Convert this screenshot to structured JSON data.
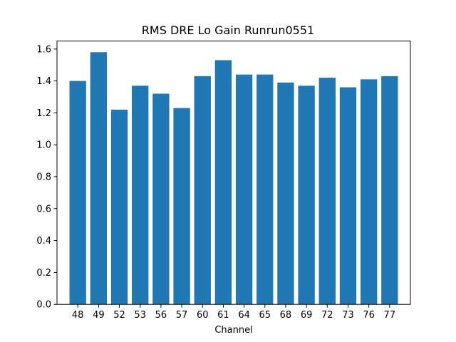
{
  "chart_data": {
    "type": "bar",
    "title": "RMS DRE Lo Gain Runrun0551",
    "xlabel": "Channel",
    "ylabel": "",
    "categories": [
      "48",
      "49",
      "52",
      "53",
      "56",
      "57",
      "60",
      "61",
      "64",
      "65",
      "68",
      "69",
      "72",
      "73",
      "76",
      "77"
    ],
    "values": [
      1.4,
      1.58,
      1.22,
      1.37,
      1.32,
      1.23,
      1.43,
      1.53,
      1.44,
      1.44,
      1.39,
      1.37,
      1.42,
      1.36,
      1.41,
      1.43
    ],
    "ylim": [
      0,
      1.65
    ],
    "yticks": [
      0.0,
      0.2,
      0.4,
      0.6,
      0.8,
      1.0,
      1.2,
      1.4,
      1.6
    ],
    "ytick_labels": [
      "0.0",
      "0.2",
      "0.4",
      "0.6",
      "0.8",
      "1.0",
      "1.2",
      "1.4",
      "1.6"
    ],
    "bar_color": "#1f77b4",
    "grid": false,
    "legend": "none"
  }
}
